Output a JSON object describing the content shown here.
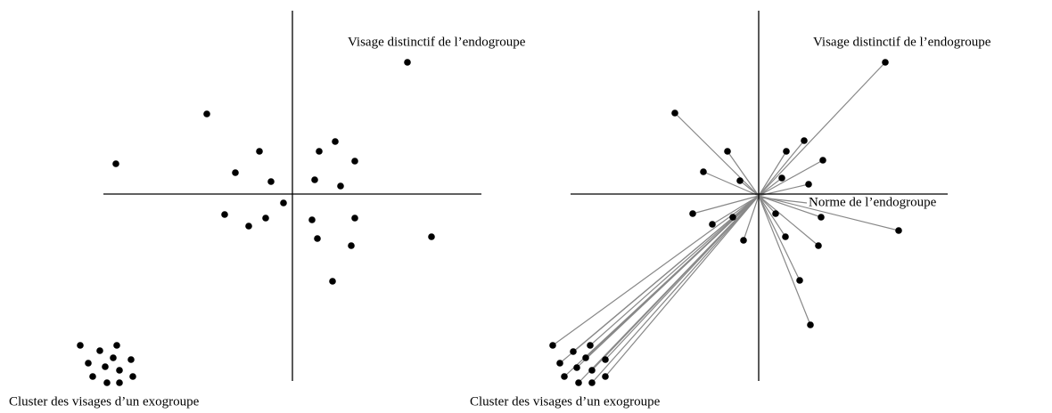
{
  "panels": [
    {
      "top_label": "Visage distinctif de l’endogroupe",
      "bottom_label": "Cluster des visages d’un exogroupe"
    },
    {
      "top_label": "Visage distinctif de l’endogroupe",
      "bottom_label": "Cluster des visages d’un exogroupe",
      "center_label": "Norme de l’endogroupe"
    }
  ]
}
